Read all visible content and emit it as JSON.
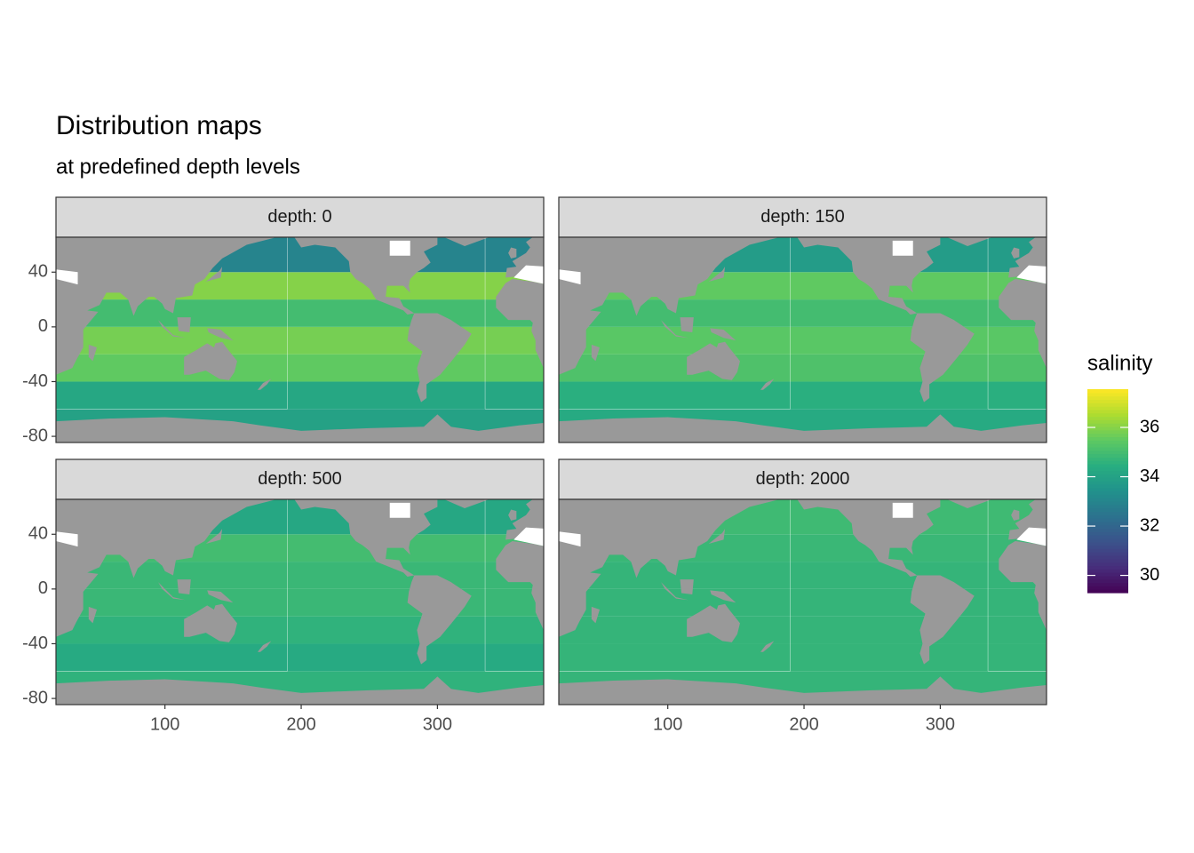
{
  "chart_data": {
    "type": "raster",
    "title": "Distribution maps",
    "subtitle": "at predefined depth levels",
    "xlim": [
      20,
      378
    ],
    "ylim": [
      -84.5,
      65.5
    ],
    "xticks": [
      100,
      200,
      300
    ],
    "yticks": [
      40,
      0,
      -40,
      -80
    ],
    "lat_bins": [
      -84.5,
      -60,
      -40,
      -20,
      0,
      20,
      40,
      65.5
    ],
    "facets": [
      {
        "label": "depth: 0",
        "values": [
          34.0,
          34.2,
          35.5,
          35.8,
          35.0,
          36.0,
          33.0
        ]
      },
      {
        "label": "depth: 150",
        "values": [
          34.3,
          34.5,
          35.2,
          35.4,
          35.0,
          35.5,
          33.8
        ]
      },
      {
        "label": "depth: 500",
        "values": [
          34.6,
          34.3,
          34.6,
          34.8,
          34.8,
          35.0,
          34.2
        ]
      },
      {
        "label": "depth: 2000",
        "values": [
          34.7,
          34.7,
          34.7,
          34.7,
          34.7,
          34.8,
          34.9
        ]
      }
    ],
    "legend": {
      "title": "salinity",
      "lim": [
        29.3,
        37.55
      ],
      "ticks": [
        30,
        32,
        34,
        36
      ]
    },
    "colormap": [
      "#440154",
      "#472d7b",
      "#3b528b",
      "#2c728e",
      "#21918c",
      "#28ae80",
      "#5ec962",
      "#addc30",
      "#fde725"
    ],
    "land_color": "#999999"
  }
}
